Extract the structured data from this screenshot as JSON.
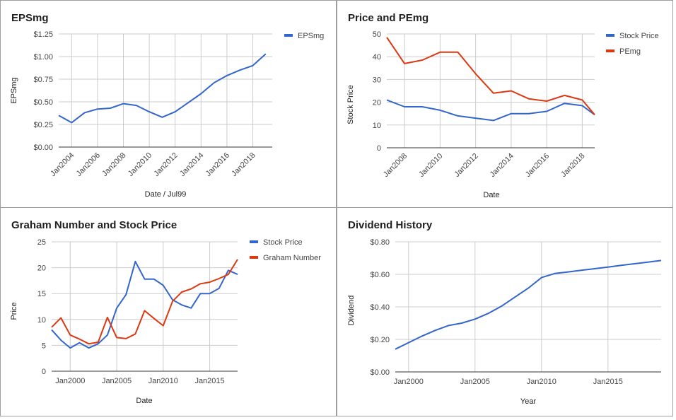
{
  "colors": {
    "blue": "#3366cc",
    "red": "#dc3912"
  },
  "chart_data": [
    {
      "type": "line",
      "title": "EPSmg",
      "xlabel": "Date / Jul99",
      "ylabel": "EPSmg",
      "xlim": [
        2003,
        2019.5
      ],
      "ylim": [
        0,
        1.25
      ],
      "yticks": [
        0,
        0.25,
        0.5,
        0.75,
        1.0,
        1.25
      ],
      "ytick_labels": [
        "$0.00",
        "$0.25",
        "$0.50",
        "$0.75",
        "$1.00",
        "$1.25"
      ],
      "xticks": [
        2004,
        2006,
        2008,
        2010,
        2012,
        2014,
        2016,
        2018
      ],
      "xtick_labels": [
        "Jan2004",
        "Jan2006",
        "Jan2008",
        "Jan2010",
        "Jan2012",
        "Jan2014",
        "Jan2016",
        "Jan2018"
      ],
      "xtick_rotated": true,
      "grid": true,
      "legend_position": "top-right",
      "series": [
        {
          "name": "EPSmg",
          "color": "#3366cc",
          "x": [
            2003,
            2004,
            2005,
            2006,
            2007,
            2008,
            2009,
            2010,
            2011,
            2012,
            2013,
            2014,
            2015,
            2016,
            2017,
            2018,
            2019
          ],
          "y": [
            0.35,
            0.27,
            0.38,
            0.42,
            0.43,
            0.48,
            0.46,
            0.39,
            0.33,
            0.39,
            0.49,
            0.59,
            0.71,
            0.79,
            0.85,
            0.9,
            1.03
          ]
        }
      ]
    },
    {
      "type": "line",
      "title": "Price and PEmg",
      "xlabel": "Date",
      "ylabel": "Stock Price",
      "xlim": [
        2007,
        2018.7
      ],
      "ylim": [
        0,
        50
      ],
      "yticks": [
        0,
        10,
        20,
        30,
        40,
        50
      ],
      "ytick_labels": [
        "0",
        "10",
        "20",
        "30",
        "40",
        "50"
      ],
      "xticks": [
        2008,
        2010,
        2012,
        2014,
        2016,
        2018
      ],
      "xtick_labels": [
        "Jan2008",
        "Jan2010",
        "Jan2012",
        "Jan2014",
        "Jan2016",
        "Jan2018"
      ],
      "xtick_rotated": true,
      "grid": true,
      "legend_position": "top-right",
      "series": [
        {
          "name": "Stock Price",
          "color": "#3366cc",
          "x": [
            2007,
            2008,
            2009,
            2010,
            2011,
            2012,
            2013,
            2014,
            2015,
            2016,
            2017,
            2018,
            2018.7
          ],
          "y": [
            21,
            18,
            18,
            16.5,
            14,
            13,
            12,
            15,
            15,
            16,
            19.5,
            18.5,
            14.5
          ]
        },
        {
          "name": "PEmg",
          "color": "#dc3912",
          "x": [
            2007,
            2008,
            2009,
            2010,
            2011,
            2012,
            2013,
            2014,
            2015,
            2016,
            2017,
            2018,
            2018.7
          ],
          "y": [
            48.5,
            37,
            38.5,
            42,
            42,
            32.5,
            24,
            25,
            21.5,
            20.5,
            23,
            21,
            14.5
          ]
        }
      ]
    },
    {
      "type": "line",
      "title": "Graham Number and Stock Price",
      "xlabel": "Date",
      "ylabel": "Price",
      "xlim": [
        1998,
        2018
      ],
      "ylim": [
        0,
        25
      ],
      "yticks": [
        0,
        5,
        10,
        15,
        20,
        25
      ],
      "ytick_labels": [
        "0",
        "5",
        "10",
        "15",
        "20",
        "25"
      ],
      "xticks": [
        2000,
        2005,
        2010,
        2015
      ],
      "xtick_labels": [
        "Jan2000",
        "Jan2005",
        "Jan2010",
        "Jan2015"
      ],
      "xtick_rotated": false,
      "grid": true,
      "legend_position": "top-right",
      "series": [
        {
          "name": "Stock Price",
          "color": "#3366cc",
          "x": [
            1998,
            1999,
            2000,
            2001,
            2002,
            2003,
            2004,
            2005,
            2006,
            2007,
            2008,
            2009,
            2010,
            2011,
            2012,
            2013,
            2014,
            2015,
            2016,
            2017,
            2018
          ],
          "y": [
            8,
            6,
            4.5,
            5.5,
            4.5,
            5.3,
            7,
            12.2,
            14.8,
            21.2,
            17.8,
            17.8,
            16.6,
            13.8,
            12.8,
            12.2,
            15,
            15,
            16,
            19.5,
            18.7
          ]
        },
        {
          "name": "Graham Number",
          "color": "#dc3912",
          "x": [
            1998,
            1999,
            2000,
            2001,
            2002,
            2003,
            2004,
            2005,
            2006,
            2007,
            2008,
            2009,
            2010,
            2011,
            2012,
            2013,
            2014,
            2015,
            2016,
            2017,
            2018
          ],
          "y": [
            8.5,
            10.3,
            7,
            6.2,
            5.3,
            5.6,
            10.4,
            6.5,
            6.3,
            7.2,
            11.7,
            10.2,
            8.8,
            13.5,
            15.3,
            15.9,
            16.9,
            17.2,
            17.9,
            18.7,
            21.6
          ]
        }
      ]
    },
    {
      "type": "line",
      "title": "Dividend History",
      "xlabel": "Year",
      "ylabel": "Dividend",
      "xlim": [
        1999,
        2019
      ],
      "ylim": [
        0,
        0.8
      ],
      "yticks": [
        0,
        0.2,
        0.4,
        0.6,
        0.8
      ],
      "ytick_labels": [
        "$0.00",
        "$0.20",
        "$0.40",
        "$0.60",
        "$0.80"
      ],
      "xticks": [
        2000,
        2005,
        2010,
        2015
      ],
      "xtick_labels": [
        "Jan2000",
        "Jan2005",
        "Jan2010",
        "Jan2015"
      ],
      "xtick_rotated": false,
      "grid": true,
      "legend_position": "none",
      "series": [
        {
          "name": "",
          "color": "#3366cc",
          "x": [
            1999,
            2000,
            2001,
            2002,
            2003,
            2004,
            2005,
            2006,
            2007,
            2008,
            2009,
            2010,
            2011,
            2012,
            2013,
            2014,
            2015,
            2016,
            2017,
            2018,
            2019
          ],
          "y": [
            0.14,
            0.18,
            0.22,
            0.255,
            0.285,
            0.3,
            0.325,
            0.36,
            0.405,
            0.46,
            0.515,
            0.58,
            0.605,
            0.615,
            0.625,
            0.635,
            0.645,
            0.655,
            0.665,
            0.675,
            0.685
          ]
        }
      ]
    }
  ]
}
